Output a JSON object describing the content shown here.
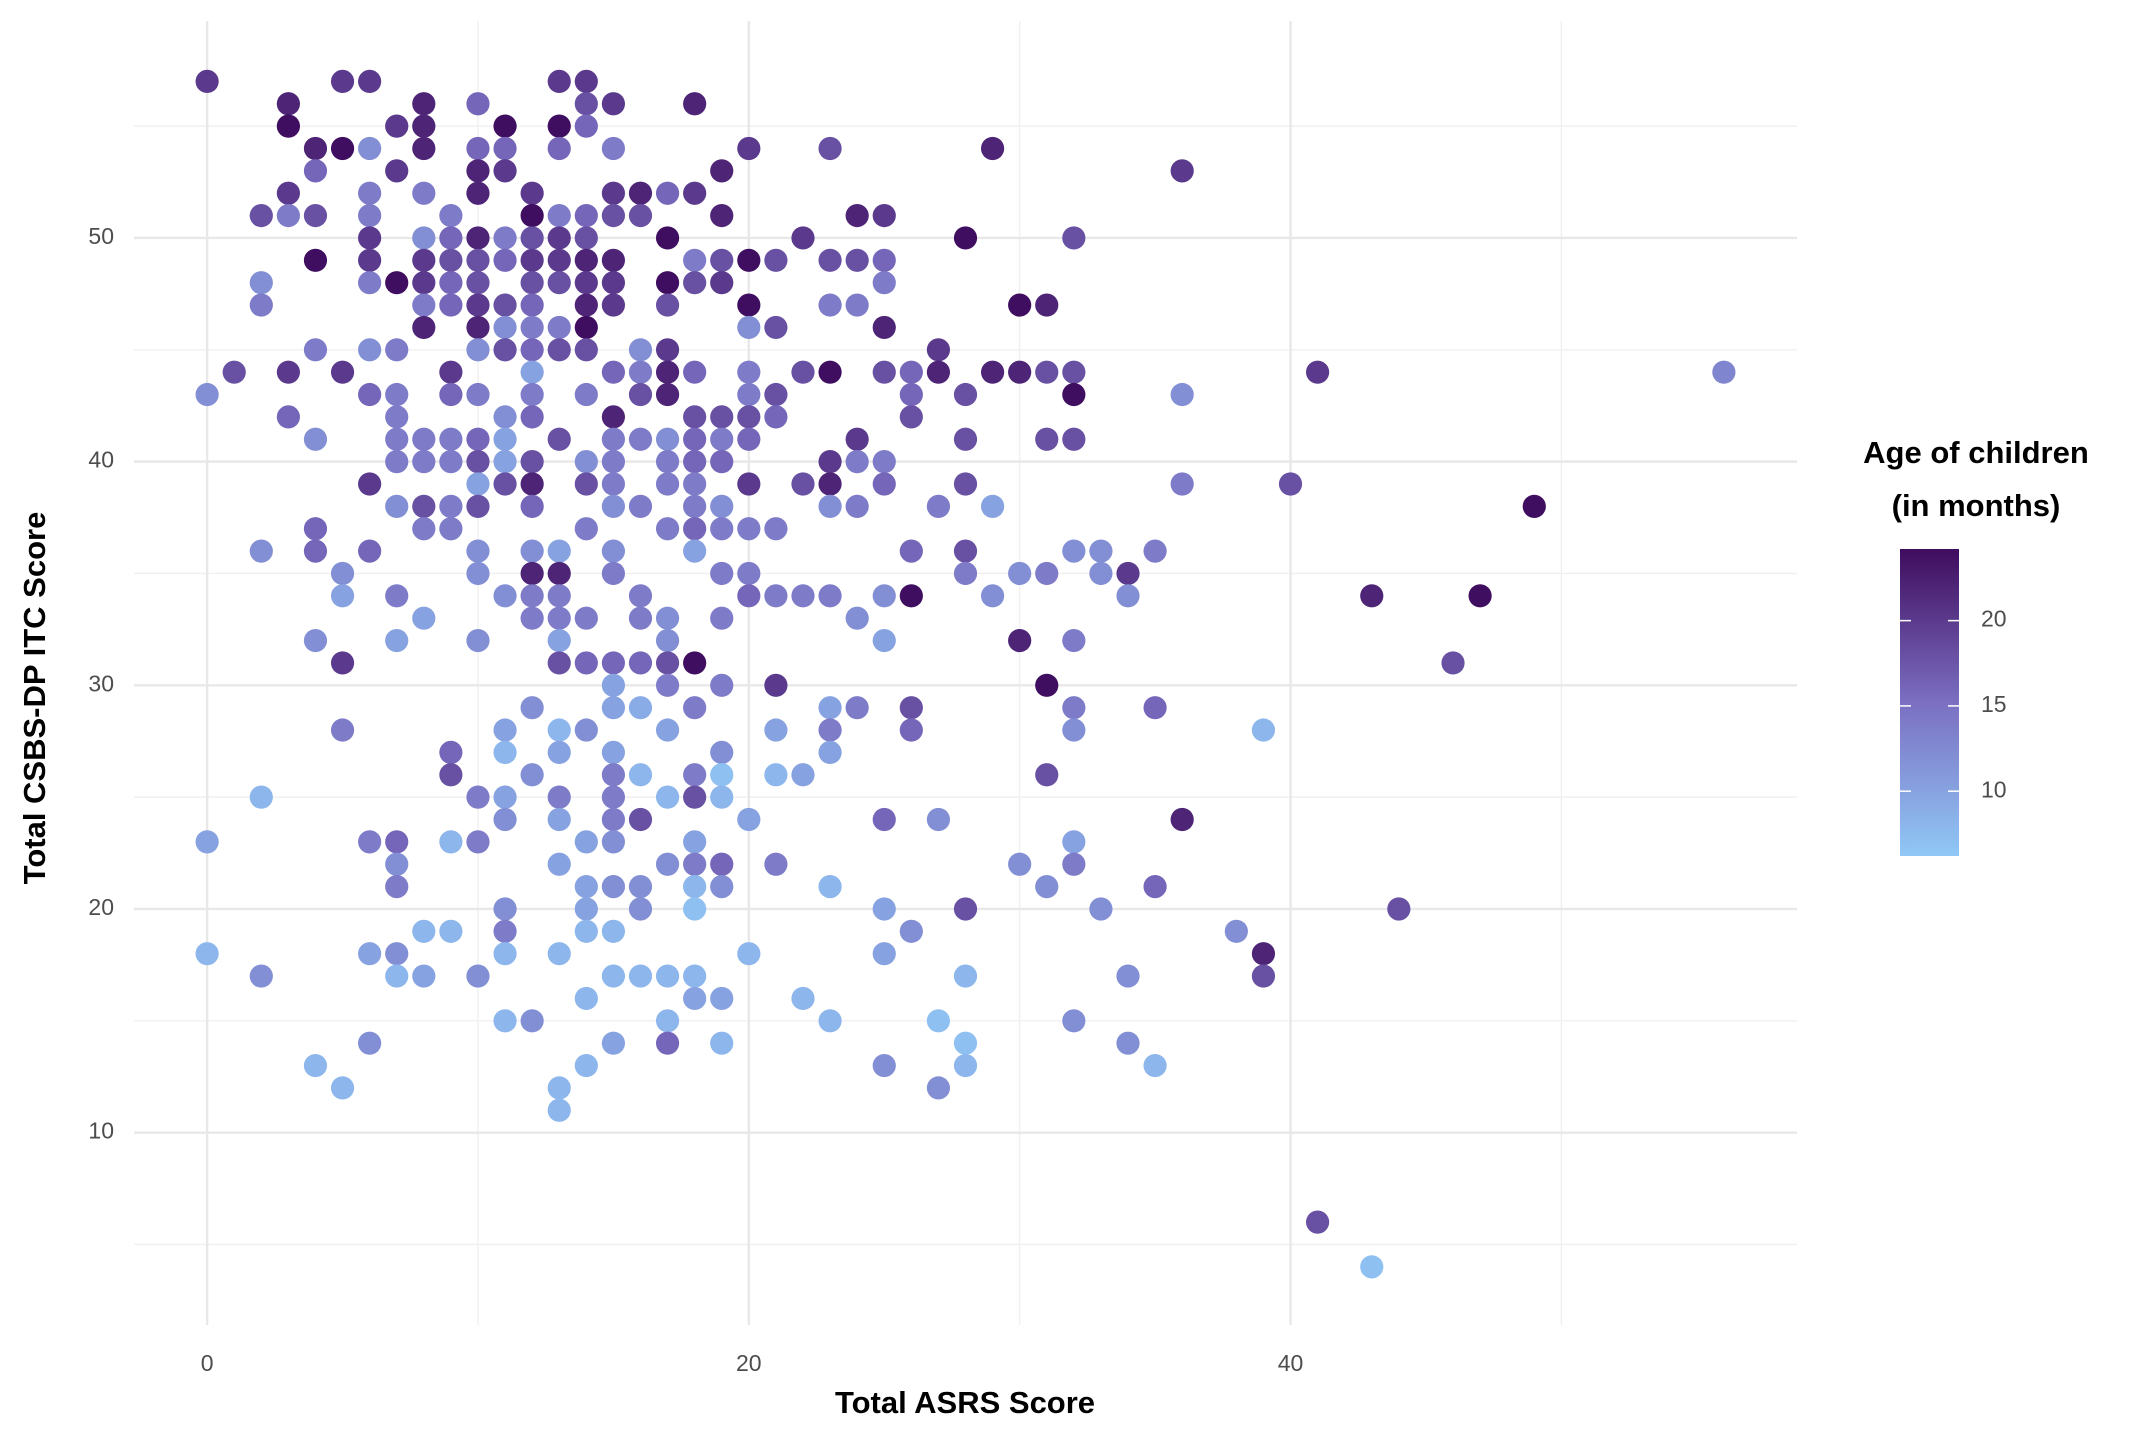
{
  "chart_data": {
    "type": "scatter",
    "x_label": "Total ASRS Score",
    "y_label": "Total CSBS-DP ITC Score",
    "legend_title": [
      "Age of children",
      "(in months)"
    ],
    "xlim": [
      -2.7,
      58.7
    ],
    "ylim": [
      1.4,
      59.7
    ],
    "xticks": [
      0,
      20,
      40
    ],
    "yticks": [
      10,
      20,
      30,
      40,
      50
    ],
    "xminor": [
      10,
      30,
      50
    ],
    "yminor": [
      5,
      15,
      25,
      35,
      45,
      55
    ],
    "grid": true,
    "colorlim": [
      6.2,
      24.2
    ],
    "colorticks": [
      10,
      15,
      20
    ],
    "colorscale": [
      "#90c8f6",
      "#7b6fc2",
      "#3f0c5e"
    ],
    "x": [
      0,
      5,
      6,
      13,
      14,
      3,
      8,
      10,
      14,
      15,
      18,
      3,
      7,
      8,
      11,
      13,
      14,
      4,
      5,
      6,
      8,
      10,
      11,
      13,
      15,
      20,
      23,
      29,
      4,
      7,
      10,
      11,
      19,
      36,
      3,
      6,
      8,
      10,
      12,
      15,
      16,
      17,
      18,
      2,
      3,
      4,
      6,
      9,
      12,
      13,
      14,
      15,
      16,
      19,
      24,
      25,
      6,
      8,
      9,
      10,
      11,
      12,
      13,
      14,
      17,
      22,
      28,
      32,
      4,
      6,
      8,
      9,
      10,
      11,
      12,
      13,
      14,
      15,
      18,
      19,
      20,
      21,
      23,
      24,
      25,
      2,
      6,
      7,
      8,
      9,
      10,
      12,
      13,
      14,
      15,
      17,
      18,
      19,
      25,
      2,
      8,
      9,
      10,
      11,
      12,
      14,
      15,
      17,
      20,
      23,
      24,
      30,
      31,
      8,
      10,
      11,
      12,
      13,
      14,
      20,
      21,
      25,
      4,
      6,
      7,
      10,
      11,
      12,
      13,
      14,
      16,
      17,
      27,
      1,
      3,
      5,
      9,
      12,
      15,
      16,
      17,
      18,
      20,
      22,
      23,
      25,
      26,
      27,
      29,
      30,
      31,
      32,
      41,
      56,
      0,
      6,
      7,
      9,
      10,
      12,
      14,
      16,
      17,
      20,
      21,
      26,
      28,
      32,
      36,
      3,
      7,
      11,
      12,
      15,
      18,
      19,
      20,
      21,
      26,
      4,
      7,
      8,
      9,
      10,
      11,
      13,
      15,
      16,
      17,
      18,
      19,
      20,
      24,
      28,
      31,
      32,
      7,
      8,
      9,
      10,
      11,
      12,
      14,
      15,
      17,
      18,
      19,
      23,
      24,
      25,
      6,
      10,
      11,
      12,
      14,
      15,
      17,
      18,
      20,
      22,
      23,
      25,
      28,
      36,
      40,
      7,
      8,
      9,
      10,
      12,
      15,
      16,
      18,
      19,
      23,
      24,
      27,
      29,
      49,
      4,
      8,
      9,
      14,
      17,
      18,
      19,
      20,
      21,
      2,
      4,
      6,
      10,
      12,
      13,
      15,
      18,
      26,
      28,
      32,
      33,
      35,
      5,
      10,
      12,
      13,
      15,
      19,
      20,
      28,
      30,
      31,
      33,
      34,
      5,
      7,
      11,
      12,
      13,
      16,
      20,
      21,
      22,
      23,
      25,
      26,
      29,
      34,
      43,
      47,
      8,
      12,
      13,
      14,
      16,
      17,
      19,
      24,
      4,
      7,
      10,
      13,
      17,
      25,
      30,
      32,
      5,
      13,
      14,
      15,
      16,
      17,
      18,
      46,
      15,
      17,
      19,
      21,
      31,
      12,
      15,
      16,
      18,
      23,
      24,
      26,
      32,
      35,
      5,
      11,
      13,
      14,
      17,
      21,
      23,
      26,
      32,
      39,
      9,
      11,
      13,
      15,
      19,
      23,
      9,
      12,
      15,
      16,
      18,
      19,
      21,
      22,
      31,
      2,
      10,
      11,
      13,
      15,
      17,
      18,
      19,
      11,
      13,
      15,
      16,
      20,
      25,
      27,
      36,
      0,
      6,
      7,
      9,
      10,
      14,
      15,
      18,
      32,
      7,
      13,
      17,
      18,
      19,
      21,
      30,
      32,
      7,
      14,
      15,
      16,
      18,
      19,
      23,
      31,
      35,
      11,
      14,
      16,
      18,
      25,
      28,
      33,
      44,
      8,
      9,
      11,
      14,
      15,
      26,
      38,
      0,
      6,
      7,
      11,
      13,
      20,
      25,
      39,
      2,
      7,
      8,
      10,
      15,
      16,
      17,
      18,
      28,
      34,
      39,
      14,
      18,
      19,
      22,
      11,
      12,
      17,
      23,
      27,
      32,
      6,
      15,
      17,
      19,
      28,
      34,
      4,
      14,
      25,
      28,
      35,
      5,
      13,
      27,
      13,
      41,
      43
    ],
    "values": [
      57,
      57,
      57,
      57,
      57,
      56,
      56,
      56,
      56,
      56,
      56,
      55,
      55,
      55,
      55,
      55,
      55,
      54,
      54,
      54,
      54,
      54,
      54,
      54,
      54,
      54,
      54,
      54,
      53,
      53,
      53,
      53,
      53,
      53,
      52,
      52,
      52,
      52,
      52,
      52,
      52,
      52,
      52,
      51,
      51,
      51,
      51,
      51,
      51,
      51,
      51,
      51,
      51,
      51,
      51,
      51,
      50,
      50,
      50,
      50,
      50,
      50,
      50,
      50,
      50,
      50,
      50,
      50,
      49,
      49,
      49,
      49,
      49,
      49,
      49,
      49,
      49,
      49,
      49,
      49,
      49,
      49,
      49,
      49,
      49,
      48,
      48,
      48,
      48,
      48,
      48,
      48,
      48,
      48,
      48,
      48,
      48,
      48,
      48,
      47,
      47,
      47,
      47,
      47,
      47,
      47,
      47,
      47,
      47,
      47,
      47,
      47,
      47,
      46,
      46,
      46,
      46,
      46,
      46,
      46,
      46,
      46,
      45,
      45,
      45,
      45,
      45,
      45,
      45,
      45,
      45,
      45,
      45,
      44,
      44,
      44,
      44,
      44,
      44,
      44,
      44,
      44,
      44,
      44,
      44,
      44,
      44,
      44,
      44,
      44,
      44,
      44,
      44,
      44,
      43,
      43,
      43,
      43,
      43,
      43,
      43,
      43,
      43,
      43,
      43,
      43,
      43,
      43,
      43,
      42,
      42,
      42,
      42,
      42,
      42,
      42,
      42,
      42,
      42,
      41,
      41,
      41,
      41,
      41,
      41,
      41,
      41,
      41,
      41,
      41,
      41,
      41,
      41,
      41,
      41,
      41,
      40,
      40,
      40,
      40,
      40,
      40,
      40,
      40,
      40,
      40,
      40,
      40,
      40,
      40,
      39,
      39,
      39,
      39,
      39,
      39,
      39,
      39,
      39,
      39,
      39,
      39,
      39,
      39,
      39,
      38,
      38,
      38,
      38,
      38,
      38,
      38,
      38,
      38,
      38,
      38,
      38,
      38,
      38,
      37,
      37,
      37,
      37,
      37,
      37,
      37,
      37,
      37,
      36,
      36,
      36,
      36,
      36,
      36,
      36,
      36,
      36,
      36,
      36,
      36,
      36,
      35,
      35,
      35,
      35,
      35,
      35,
      35,
      35,
      35,
      35,
      35,
      35,
      34,
      34,
      34,
      34,
      34,
      34,
      34,
      34,
      34,
      34,
      34,
      34,
      34,
      34,
      34,
      34,
      33,
      33,
      33,
      33,
      33,
      33,
      33,
      33,
      32,
      32,
      32,
      32,
      32,
      32,
      32,
      32,
      31,
      31,
      31,
      31,
      31,
      31,
      31,
      31,
      30,
      30,
      30,
      30,
      30,
      29,
      29,
      29,
      29,
      29,
      29,
      29,
      29,
      29,
      28,
      28,
      28,
      28,
      28,
      28,
      28,
      28,
      28,
      28,
      27,
      27,
      27,
      27,
      27,
      27,
      26,
      26,
      26,
      26,
      26,
      26,
      26,
      26,
      26,
      25,
      25,
      25,
      25,
      25,
      25,
      25,
      25,
      24,
      24,
      24,
      24,
      24,
      24,
      24,
      24,
      23,
      23,
      23,
      23,
      23,
      23,
      23,
      23,
      23,
      22,
      22,
      22,
      22,
      22,
      22,
      22,
      22,
      21,
      21,
      21,
      21,
      21,
      21,
      21,
      21,
      21,
      20,
      20,
      20,
      20,
      20,
      20,
      20,
      20,
      19,
      19,
      19,
      19,
      19,
      19,
      19,
      18,
      18,
      18,
      18,
      18,
      18,
      18,
      18,
      17,
      17,
      17,
      17,
      17,
      17,
      17,
      17,
      17,
      17,
      17,
      16,
      16,
      16,
      16,
      15,
      15,
      15,
      15,
      15,
      15,
      14,
      14,
      14,
      14,
      14,
      14,
      13,
      13,
      13,
      13,
      13,
      12,
      12,
      12,
      11,
      6,
      4
    ],
    "color_values": [
      20,
      20,
      20,
      20,
      20,
      22,
      22,
      16,
      18,
      20,
      22,
      24,
      20,
      22,
      24,
      24,
      16,
      22,
      24,
      12,
      22,
      16,
      16,
      16,
      14,
      20,
      18,
      22,
      16,
      20,
      22,
      20,
      22,
      20,
      20,
      14,
      14,
      22,
      20,
      20,
      22,
      16,
      20,
      18,
      14,
      18,
      14,
      14,
      24,
      14,
      16,
      18,
      18,
      22,
      22,
      20,
      20,
      12,
      16,
      22,
      14,
      18,
      20,
      18,
      24,
      20,
      24,
      18,
      24,
      20,
      20,
      18,
      18,
      16,
      20,
      20,
      22,
      22,
      14,
      18,
      24,
      18,
      18,
      18,
      16,
      12,
      14,
      24,
      20,
      16,
      18,
      18,
      18,
      20,
      20,
      24,
      18,
      20,
      14,
      14,
      14,
      16,
      20,
      18,
      16,
      22,
      20,
      18,
      24,
      14,
      14,
      24,
      22,
      22,
      22,
      12,
      14,
      14,
      24,
      12,
      18,
      22,
      14,
      12,
      14,
      12,
      18,
      16,
      18,
      18,
      12,
      20,
      20,
      18,
      20,
      20,
      20,
      10,
      16,
      14,
      22,
      16,
      14,
      18,
      24,
      18,
      16,
      22,
      22,
      22,
      18,
      18,
      20,
      13,
      12,
      16,
      14,
      16,
      14,
      14,
      14,
      18,
      22,
      14,
      18,
      16,
      18,
      24,
      12,
      16,
      14,
      12,
      16,
      22,
      18,
      18,
      18,
      16,
      18,
      12,
      14,
      14,
      14,
      16,
      10,
      18,
      14,
      14,
      12,
      16,
      14,
      16,
      20,
      18,
      18,
      18,
      14,
      14,
      14,
      18,
      10,
      18,
      12,
      14,
      14,
      16,
      16,
      20,
      14,
      14,
      20,
      10,
      18,
      22,
      18,
      14,
      14,
      14,
      20,
      18,
      22,
      16,
      18,
      14,
      18,
      12,
      18,
      14,
      18,
      16,
      12,
      14,
      14,
      12,
      12,
      14,
      14,
      10,
      24,
      16,
      14,
      14,
      14,
      14,
      16,
      14,
      14,
      14,
      12,
      16,
      16,
      12,
      12,
      10,
      12,
      10,
      16,
      18,
      12,
      12,
      14,
      12,
      12,
      22,
      22,
      14,
      14,
      14,
      14,
      12,
      14,
      12,
      20,
      10,
      14,
      12,
      14,
      14,
      14,
      16,
      14,
      14,
      14,
      12,
      24,
      12,
      12,
      22,
      24,
      10,
      14,
      14,
      14,
      14,
      12,
      14,
      12,
      12,
      10,
      12,
      10,
      12,
      10,
      22,
      14,
      20,
      18,
      16,
      16,
      16,
      18,
      24,
      18,
      10,
      14,
      14,
      20,
      24,
      12,
      10,
      9,
      14,
      10,
      14,
      18,
      14,
      16,
      14,
      10,
      8,
      12,
      10,
      10,
      14,
      16,
      12,
      8,
      16,
      8,
      10,
      10,
      12,
      10,
      18,
      12,
      14,
      8,
      14,
      7,
      8,
      10,
      18,
      8,
      14,
      10,
      14,
      14,
      8,
      18,
      8,
      12,
      10,
      14,
      18,
      10,
      16,
      12,
      22,
      10,
      14,
      16,
      8,
      14,
      10,
      12,
      10,
      10,
      12,
      10,
      12,
      14,
      16,
      14,
      12,
      14,
      14,
      10,
      12,
      12,
      8,
      12,
      8,
      12,
      16,
      12,
      10,
      12,
      7,
      10,
      18,
      12,
      18,
      8,
      8,
      14,
      8,
      8,
      12,
      12,
      8,
      10,
      12,
      8,
      8,
      8,
      10,
      22,
      12,
      8,
      10,
      12,
      8,
      8,
      8,
      8,
      8,
      12,
      18,
      8,
      10,
      10,
      8,
      8,
      12,
      8,
      8,
      7,
      12,
      12,
      10,
      16,
      8,
      7,
      12,
      8,
      8,
      12,
      8,
      8,
      8,
      8,
      12,
      8,
      18,
      7
    ]
  }
}
